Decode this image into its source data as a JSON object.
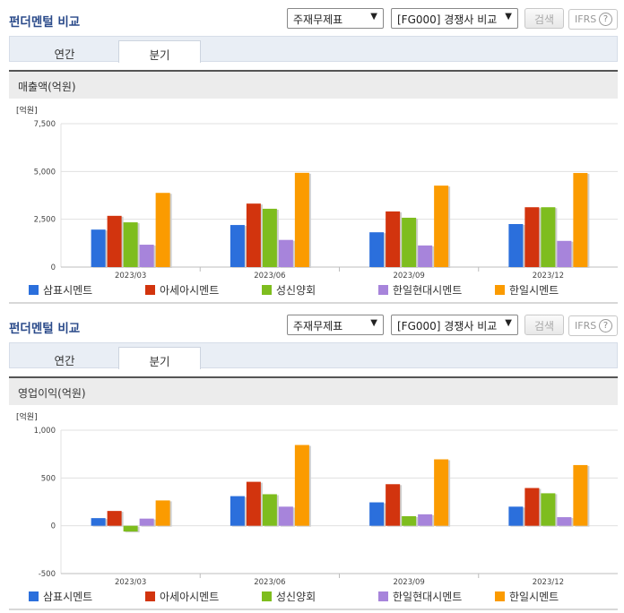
{
  "series_colors": [
    "#2b6fdc",
    "#d2340e",
    "#7ebd1e",
    "#a784db",
    "#fb9b00"
  ],
  "sections": [
    {
      "title": "펀더멘털 비교",
      "select1": "주재무제표",
      "select2": "[FG000] 경쟁사 비교",
      "search_label": "검색",
      "ifrs_label": "IFRS",
      "help": "?",
      "tabs": [
        "연간",
        "분기"
      ],
      "active_tab": 1,
      "header": "매출액(억원)",
      "unit": "[억원]"
    },
    {
      "title": "펀더멘털 비교",
      "select1": "주재무제표",
      "select2": "[FG000] 경쟁사 비교",
      "search_label": "검색",
      "ifrs_label": "IFRS",
      "help": "?",
      "tabs": [
        "연간",
        "분기"
      ],
      "active_tab": 1,
      "header": "영업이익(억원)",
      "unit": "[억원]"
    }
  ],
  "chart_data": [
    {
      "type": "bar",
      "title": "매출액(억원)",
      "ylabel": "[억원]",
      "categories": [
        "2023/03",
        "2023/06",
        "2023/09",
        "2023/12"
      ],
      "ylim": [
        0,
        7500
      ],
      "yticks": [
        0,
        2500,
        5000,
        7500
      ],
      "ytick_labels": [
        "0",
        "2,500",
        "5,000",
        "7,500"
      ],
      "grid": true,
      "legend": "bottom",
      "series": [
        {
          "name": "삼표시멘트",
          "values": [
            1960,
            2200,
            1820,
            2250
          ]
        },
        {
          "name": "아세아시멘트",
          "values": [
            2680,
            3320,
            2910,
            3130
          ]
        },
        {
          "name": "성신양회",
          "values": [
            2340,
            3050,
            2580,
            3130
          ]
        },
        {
          "name": "한일현대시멘트",
          "values": [
            1170,
            1420,
            1130,
            1370
          ]
        },
        {
          "name": "한일시멘트",
          "values": [
            3880,
            4930,
            4260,
            4920
          ]
        }
      ]
    },
    {
      "type": "bar",
      "title": "영업이익(억원)",
      "ylabel": "[억원]",
      "categories": [
        "2023/03",
        "2023/06",
        "2023/09",
        "2023/12"
      ],
      "ylim": [
        -500,
        1000
      ],
      "yticks": [
        -500,
        0,
        500,
        1000
      ],
      "ytick_labels": [
        "-500",
        "0",
        "500",
        "1,000"
      ],
      "grid": true,
      "legend": "bottom",
      "series": [
        {
          "name": "삼표시멘트",
          "values": [
            80,
            310,
            245,
            200
          ]
        },
        {
          "name": "아세아시멘트",
          "values": [
            155,
            460,
            435,
            395
          ]
        },
        {
          "name": "성신양회",
          "values": [
            -60,
            330,
            100,
            340
          ]
        },
        {
          "name": "한일현대시멘트",
          "values": [
            75,
            200,
            120,
            90
          ]
        },
        {
          "name": "한일시멘트",
          "values": [
            265,
            845,
            695,
            635
          ]
        }
      ]
    }
  ]
}
